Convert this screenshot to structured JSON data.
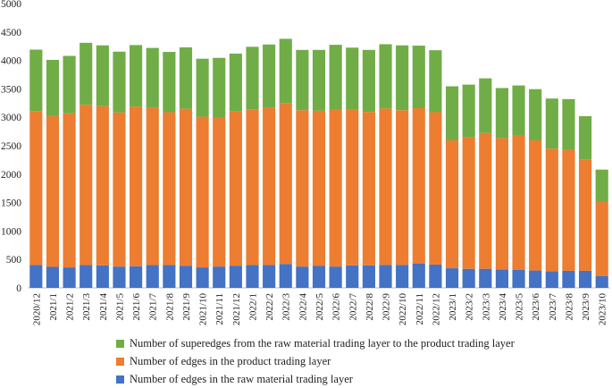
{
  "chart_data": {
    "type": "bar",
    "stacked": true,
    "title": "",
    "xlabel": "",
    "ylabel": "",
    "ylim": [
      0,
      5000
    ],
    "yticks": [
      0,
      500,
      1000,
      1500,
      2000,
      2500,
      3000,
      3500,
      4000,
      4500,
      5000
    ],
    "categories": [
      "2020/12",
      "2021/1",
      "2021/2",
      "2021/3",
      "2021/4",
      "2021/5",
      "2021/6",
      "2021/7",
      "2021/8",
      "2021/9",
      "2021/10",
      "2021/11",
      "2021/12",
      "2022/1",
      "2022/2",
      "2022/3",
      "2022/4",
      "2022/5",
      "2022/6",
      "2022/7",
      "2022/8",
      "2022/9",
      "2022/10",
      "2022/11",
      "2022/12",
      "2023/1",
      "2023/2",
      "2023/3",
      "2023/4",
      "2023/5",
      "2023/6",
      "2023/7",
      "2023/8",
      "2023/9",
      "2023/10"
    ],
    "series": [
      {
        "name": "Number of edges in the raw material trading layer",
        "color": "#4472C4",
        "values": [
          400,
          370,
          360,
          400,
          395,
          375,
          380,
          400,
          400,
          390,
          360,
          375,
          390,
          400,
          400,
          420,
          375,
          385,
          375,
          395,
          395,
          405,
          405,
          430,
          410,
          345,
          335,
          335,
          325,
          320,
          305,
          290,
          300,
          300,
          210
        ]
      },
      {
        "name": "Number of edges in the product trading layer",
        "color": "#ED7D31",
        "values": [
          2710,
          2650,
          2710,
          2820,
          2800,
          2710,
          2810,
          2770,
          2690,
          2760,
          2650,
          2620,
          2710,
          2740,
          2770,
          2830,
          2750,
          2730,
          2770,
          2740,
          2700,
          2750,
          2720,
          2730,
          2680,
          2250,
          2310,
          2390,
          2310,
          2360,
          2290,
          2160,
          2130,
          1960,
          1300
        ]
      },
      {
        "name": "Number of superedges from the raw material trading layer to the product trading layer",
        "color": "#70AD47",
        "values": [
          1080,
          990,
          1010,
          1090,
          1070,
          1070,
          1080,
          1050,
          1060,
          1080,
          1020,
          1050,
          1020,
          1100,
          1110,
          1130,
          1060,
          1070,
          1130,
          1090,
          1090,
          1130,
          1140,
          1100,
          1090,
          950,
          930,
          960,
          880,
          880,
          900,
          880,
          890,
          760,
          570
        ]
      }
    ],
    "legend": {
      "position": "bottom",
      "order": [
        "Number of superedges from the raw material trading layer to the product trading layer",
        "Number of edges in the product trading layer",
        "Number of edges in the raw material trading layer"
      ]
    }
  }
}
